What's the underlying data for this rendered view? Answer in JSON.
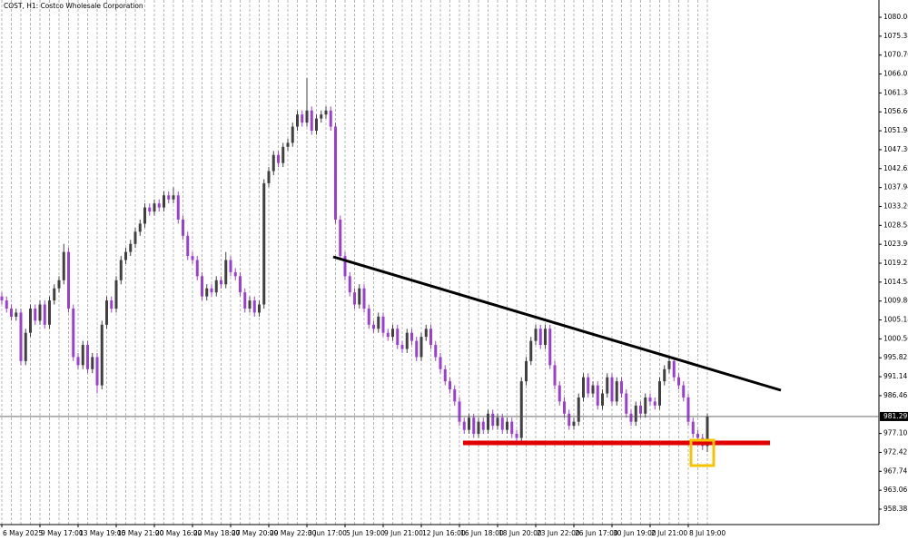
{
  "chart_data": {
    "type": "candlestick",
    "title": "COST, H1:  Costco Wholesale Corporation",
    "categories": [
      "6 May 2025",
      null,
      null,
      null,
      null,
      null,
      null,
      null,
      "9 May 17:00",
      null,
      null,
      null,
      null,
      null,
      null,
      null,
      "13 May 19:00",
      null,
      null,
      null,
      null,
      null,
      null,
      null,
      "15 May 21:00",
      null,
      null,
      null,
      null,
      null,
      null,
      null,
      "20 May 16:00",
      null,
      null,
      null,
      null,
      null,
      null,
      null,
      "22 May 18:00",
      null,
      null,
      null,
      null,
      null,
      null,
      null,
      "27 May 20:00",
      null,
      null,
      null,
      null,
      null,
      null,
      null,
      "29 May 22:00",
      null,
      null,
      null,
      null,
      null,
      null,
      null,
      "3 Jun 17:00",
      null,
      null,
      null,
      null,
      null,
      null,
      null,
      "5 Jun 19:00",
      null,
      null,
      null,
      null,
      null,
      null,
      null,
      "9 Jun 21:00",
      null,
      null,
      null,
      null,
      null,
      null,
      null,
      "12 Jun 16:00",
      null,
      null,
      null,
      null,
      null,
      null,
      null,
      "16 Jun 18:00",
      null,
      null,
      null,
      null,
      null,
      null,
      null,
      "18 Jun 20:00",
      null,
      null,
      null,
      null,
      null,
      null,
      null,
      "23 Jun 22:00",
      null,
      null,
      null,
      null,
      null,
      null,
      null,
      "26 Jun 17:00",
      null,
      null,
      null,
      null,
      null,
      null,
      null,
      "30 Jun 19:00",
      null,
      null,
      null,
      null,
      null,
      null,
      null,
      "2 Jul 21:00",
      null,
      null,
      null,
      null,
      null,
      null,
      null,
      "8 Jul 19:00",
      null,
      null,
      null,
      null
    ],
    "open": [
      1011,
      1010,
      1008,
      1006,
      1007,
      995,
      1002,
      1008,
      1005,
      1009,
      1004,
      1010,
      1013,
      1015,
      1022,
      1008,
      996,
      994,
      999,
      993,
      996,
      989,
      1004,
      1010,
      1008,
      1015,
      1020,
      1022,
      1024,
      1027,
      1029,
      1033,
      1032,
      1034,
      1033,
      1036,
      1035,
      1036,
      1030,
      1026,
      1021,
      1020,
      1016,
      1011,
      1013,
      1012,
      1015,
      1014,
      1020,
      1017,
      1016,
      1012,
      1008,
      1010,
      1007,
      1009,
      1039,
      1042,
      1046,
      1044,
      1048,
      1049,
      1053,
      1056,
      1054,
      1057,
      1052,
      1055,
      1056,
      1057,
      1053,
      1030,
      1021,
      1016,
      1012,
      1009,
      1013,
      1008,
      1004,
      1003,
      1006,
      1002,
      1001,
      1003,
      999,
      998,
      1002,
      1000,
      996,
      1001,
      1003,
      999,
      996,
      993,
      990,
      988,
      985,
      980,
      978,
      981,
      977,
      980,
      978,
      982,
      979,
      981,
      978,
      980,
      977,
      976,
      990,
      995,
      1000,
      1003,
      999,
      1003,
      994,
      989,
      985,
      982,
      979,
      980,
      986,
      991,
      987,
      989,
      984,
      987,
      991,
      985,
      990,
      987,
      982,
      980,
      984,
      982,
      986,
      985,
      984,
      990,
      993,
      995,
      991,
      989,
      986,
      980,
      977,
      976,
      974
    ],
    "high": [
      1012,
      1011,
      1009,
      1008,
      1008,
      1003,
      1009,
      1009,
      1010,
      1010,
      1011,
      1014,
      1016,
      1024,
      1023,
      1009,
      997,
      1000,
      1000,
      997,
      997,
      1005,
      1011,
      1011,
      1016,
      1021,
      1023,
      1025,
      1028,
      1030,
      1034,
      1034,
      1035,
      1035,
      1037,
      1037,
      1038,
      1037,
      1031,
      1027,
      1022,
      1021,
      1017,
      1014,
      1014,
      1016,
      1016,
      1022,
      1021,
      1018,
      1017,
      1013,
      1011,
      1011,
      1010,
      1040,
      1043,
      1047,
      1047,
      1049,
      1050,
      1054,
      1057,
      1057,
      1065,
      1058,
      1056,
      1057,
      1058,
      1058,
      1054,
      1031,
      1022,
      1017,
      1013,
      1014,
      1014,
      1009,
      1005,
      1007,
      1007,
      1003,
      1004,
      1004,
      1000,
      1003,
      1003,
      1001,
      1002,
      1004,
      1004,
      1000,
      997,
      994,
      991,
      989,
      986,
      981,
      982,
      982,
      981,
      981,
      983,
      983,
      982,
      982,
      981,
      981,
      978,
      991,
      996,
      1001,
      1004,
      1004,
      1004,
      1004,
      995,
      990,
      986,
      983,
      981,
      987,
      992,
      992,
      990,
      990,
      988,
      992,
      992,
      991,
      991,
      988,
      983,
      985,
      985,
      987,
      987,
      986,
      991,
      994,
      996,
      996,
      992,
      990,
      987,
      981,
      978,
      977,
      982
    ],
    "low": [
      1009,
      1007,
      1005,
      1005,
      994,
      994,
      1001,
      1004,
      1004,
      1003,
      1003,
      1009,
      1012,
      1014,
      1007,
      995,
      993,
      993,
      992,
      992,
      987,
      988,
      1003,
      1007,
      1007,
      1014,
      1019,
      1021,
      1023,
      1026,
      1028,
      1031,
      1031,
      1032,
      1032,
      1034,
      1034,
      1029,
      1025,
      1020,
      1019,
      1015,
      1010,
      1010,
      1011,
      1011,
      1013,
      1013,
      1016,
      1015,
      1011,
      1007,
      1007,
      1006,
      1006,
      1008,
      1038,
      1041,
      1043,
      1043,
      1047,
      1048,
      1052,
      1053,
      1053,
      1051,
      1051,
      1054,
      1055,
      1052,
      1029,
      1020,
      1015,
      1011,
      1008,
      1008,
      1007,
      1003,
      1002,
      1002,
      1001,
      1000,
      1000,
      998,
      997,
      997,
      999,
      995,
      995,
      1000,
      998,
      995,
      992,
      989,
      987,
      984,
      979,
      977,
      977,
      976,
      976,
      977,
      977,
      978,
      978,
      977,
      977,
      976,
      975,
      975,
      989,
      994,
      999,
      998,
      998,
      993,
      988,
      984,
      981,
      978,
      978,
      979,
      985,
      986,
      986,
      983,
      983,
      986,
      984,
      984,
      986,
      981,
      979,
      979,
      981,
      981,
      984,
      983,
      983,
      989,
      992,
      990,
      988,
      985,
      979,
      976,
      975,
      973,
      972.5
    ],
    "close": [
      1010,
      1008,
      1006,
      1007,
      995,
      1002,
      1008,
      1005,
      1009,
      1004,
      1010,
      1013,
      1015,
      1022,
      1008,
      996,
      994,
      999,
      993,
      996,
      989,
      1004,
      1010,
      1008,
      1015,
      1020,
      1022,
      1024,
      1027,
      1029,
      1033,
      1032,
      1034,
      1033,
      1036,
      1035,
      1036,
      1030,
      1026,
      1021,
      1020,
      1016,
      1011,
      1013,
      1012,
      1015,
      1014,
      1020,
      1017,
      1016,
      1012,
      1008,
      1010,
      1007,
      1009,
      1039,
      1042,
      1046,
      1044,
      1048,
      1049,
      1053,
      1056,
      1054,
      1057,
      1052,
      1055,
      1056,
      1057,
      1053,
      1030,
      1021,
      1016,
      1012,
      1009,
      1013,
      1008,
      1004,
      1003,
      1006,
      1002,
      1001,
      1003,
      999,
      998,
      1002,
      1000,
      996,
      1001,
      1003,
      999,
      996,
      993,
      990,
      988,
      985,
      980,
      978,
      981,
      977,
      980,
      978,
      982,
      979,
      981,
      978,
      980,
      977,
      976,
      990,
      995,
      1000,
      1003,
      999,
      1003,
      994,
      989,
      985,
      982,
      979,
      980,
      986,
      991,
      987,
      989,
      984,
      987,
      991,
      985,
      990,
      987,
      982,
      980,
      984,
      982,
      986,
      985,
      984,
      990,
      993,
      995,
      991,
      989,
      986,
      980,
      977,
      976,
      974,
      981.29
    ],
    "up_color": "#404040",
    "down_color": "#9a3fd6",
    "current_price": 981.29,
    "ylim": [
      954.56,
      1084.33
    ],
    "yticks": [
      {
        "value": 1080.06,
        "label": "1080.06"
      },
      {
        "value": 1075.38,
        "label": "1075.38"
      },
      {
        "value": 1070.7,
        "label": "1070.70"
      },
      {
        "value": 1066.02,
        "label": "1066.02"
      },
      {
        "value": 1061.34,
        "label": "1061.34"
      },
      {
        "value": 1056.66,
        "label": "1056.66"
      },
      {
        "value": 1051.98,
        "label": "1051.98"
      },
      {
        "value": 1047.3,
        "label": "1047.30"
      },
      {
        "value": 1042.62,
        "label": "1042.62"
      },
      {
        "value": 1037.94,
        "label": "1037.94"
      },
      {
        "value": 1033.26,
        "label": "1033.26"
      },
      {
        "value": 1028.58,
        "label": "1028.58"
      },
      {
        "value": 1023.9,
        "label": "1023.90"
      },
      {
        "value": 1019.22,
        "label": "1019.22"
      },
      {
        "value": 1014.54,
        "label": "1014.54"
      },
      {
        "value": 1009.86,
        "label": "1009.86"
      },
      {
        "value": 1005.18,
        "label": "1005.18"
      },
      {
        "value": 1000.5,
        "label": "1000.50"
      },
      {
        "value": 995.82,
        "label": "995.82"
      },
      {
        "value": 991.14,
        "label": "991.14"
      },
      {
        "value": 986.46,
        "label": "986.46"
      },
      {
        "value": 977.1,
        "label": "977.10"
      },
      {
        "value": 972.42,
        "label": "972.42"
      },
      {
        "value": 967.74,
        "label": "967.74"
      },
      {
        "value": 963.06,
        "label": "963.06"
      },
      {
        "value": 958.38,
        "label": "958.38"
      }
    ],
    "vgrid": true
  }
}
